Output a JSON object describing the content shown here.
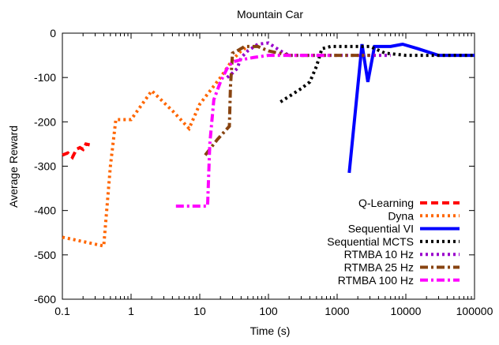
{
  "chart_data": {
    "type": "line",
    "title": "Mountain Car",
    "xlabel": "Time (s)",
    "ylabel": "Average Reward",
    "xscale": "log",
    "xlim": [
      0.1,
      100000
    ],
    "ylim": [
      -600,
      0
    ],
    "xticks": [
      0.1,
      1,
      10,
      100,
      1000,
      10000,
      100000
    ],
    "xtick_labels": [
      "0.1",
      "1",
      "10",
      "100",
      "1000",
      "10000",
      "100000"
    ],
    "yticks": [
      0,
      -100,
      -200,
      -300,
      -400,
      -500,
      -600
    ],
    "ytick_labels": [
      "0",
      "-100",
      "-200",
      "-300",
      "-400",
      "-500",
      "-600"
    ],
    "grid": false,
    "legend_position": "bottom-right",
    "series": [
      {
        "name": "Q-Learning",
        "color": "#ff0000",
        "dash": "dashed",
        "x": [
          0.1,
          0.12,
          0.14,
          0.16,
          0.18,
          0.2,
          0.22,
          0.25
        ],
        "y": [
          -275,
          -270,
          -280,
          -262,
          -258,
          -262,
          -250,
          -252
        ]
      },
      {
        "name": "Dyna",
        "color": "#ff6600",
        "dash": "dotted",
        "x": [
          0.1,
          0.4,
          0.5,
          0.6,
          1.0,
          2.0,
          4.0,
          7.0,
          10,
          20,
          30,
          40,
          50
        ],
        "y": [
          -460,
          -480,
          -300,
          -195,
          -195,
          -130,
          -175,
          -215,
          -160,
          -100,
          -60,
          -40,
          -30
        ]
      },
      {
        "name": "Sequential VI",
        "color": "#0000ff",
        "dash": "solid",
        "x": [
          1500,
          2300,
          2800,
          3500,
          6000,
          9000,
          15000,
          30000,
          100000
        ],
        "y": [
          -315,
          -25,
          -110,
          -30,
          -30,
          -25,
          -35,
          -50,
          -50
        ]
      },
      {
        "name": "Sequential MCTS",
        "color": "#000000",
        "dash": "dotted",
        "x": [
          150,
          300,
          400,
          500,
          600,
          800,
          1500,
          3000,
          5000,
          10000,
          20000,
          50000,
          100000
        ],
        "y": [
          -155,
          -125,
          -110,
          -75,
          -35,
          -30,
          -30,
          -30,
          -45,
          -50,
          -50,
          -50,
          -50
        ]
      },
      {
        "name": "RTMBA 10 Hz",
        "color": "#9900cc",
        "dash": "dotted",
        "x": [
          25,
          30,
          35,
          40,
          50,
          70,
          100,
          150,
          200,
          400,
          800,
          1500,
          3000,
          6000
        ],
        "y": [
          -100,
          -90,
          -80,
          -55,
          -40,
          -25,
          -22,
          -40,
          -50,
          -50,
          -50,
          -50,
          -50,
          -50
        ]
      },
      {
        "name": "RTMBA 25 Hz",
        "color": "#884411",
        "dash": "dashdot",
        "x": [
          12,
          18,
          27,
          28,
          30,
          35,
          45,
          70,
          100,
          200,
          400,
          800,
          1500,
          3000
        ],
        "y": [
          -275,
          -240,
          -210,
          -120,
          -45,
          -40,
          -30,
          -30,
          -40,
          -50,
          -50,
          -50,
          -50,
          -50
        ]
      },
      {
        "name": "RTMBA 100 Hz",
        "color": "#ff00ff",
        "dash": "dashdot",
        "x": [
          4.5,
          8,
          13,
          14,
          16,
          20,
          25,
          30,
          40,
          60,
          100,
          200,
          400,
          800
        ],
        "y": [
          -390,
          -390,
          -390,
          -250,
          -150,
          -110,
          -80,
          -65,
          -60,
          -55,
          -50,
          -50,
          -50,
          -50
        ]
      }
    ]
  }
}
